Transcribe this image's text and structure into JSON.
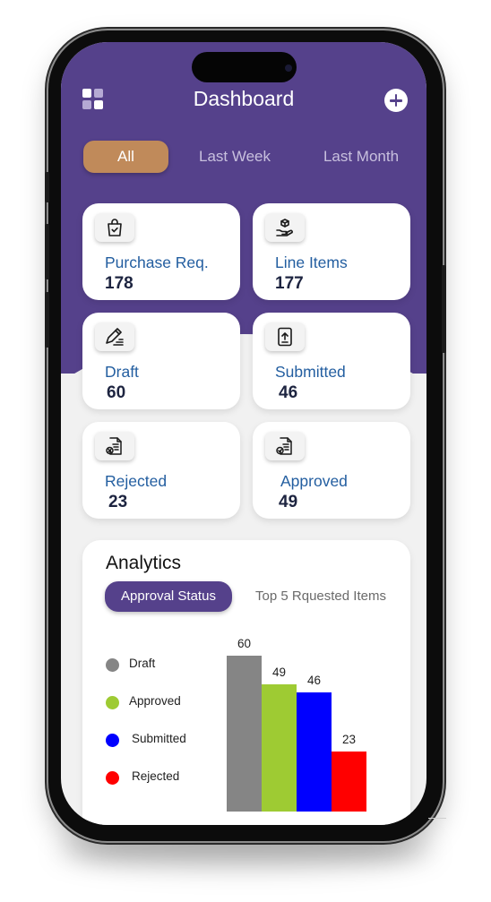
{
  "header": {
    "title": "Dashboard"
  },
  "filters": [
    {
      "label": "All",
      "active": true
    },
    {
      "label": "Last Week",
      "active": false
    },
    {
      "label": "Last Month",
      "active": false
    }
  ],
  "stats": [
    {
      "label": "Purchase Req.",
      "value": "178",
      "icon": "shopping-bag-check-icon"
    },
    {
      "label": "Line Items",
      "value": "177",
      "icon": "hand-box-icon"
    },
    {
      "label": "Draft",
      "value": "60",
      "icon": "pen-lines-icon"
    },
    {
      "label": "Submitted",
      "value": "46",
      "icon": "upload-document-icon"
    },
    {
      "label": "Rejected",
      "value": "23",
      "icon": "document-cross-icon"
    },
    {
      "label": "Approved",
      "value": "49",
      "icon": "document-check-icon"
    }
  ],
  "analytics": {
    "title": "Analytics",
    "tabs": [
      {
        "label": "Approval Status",
        "active": true
      },
      {
        "label": "Top 5 Rquested Items",
        "active": false
      }
    ]
  },
  "colors": {
    "brand_purple": "#55418b",
    "active_filter": "#c08a5a",
    "card_label": "#235ea0",
    "background": "#f1f1f1"
  },
  "chart_data": {
    "type": "bar",
    "title": "",
    "xlabel": "",
    "ylabel": "",
    "ylim": [
      0,
      60
    ],
    "grid": false,
    "legend_placement": "left",
    "categories": [
      "Draft",
      "Approved",
      "Submitted",
      "Rejected"
    ],
    "values": [
      60,
      49,
      46,
      23
    ],
    "colors": [
      "#858585",
      "#9ecb33",
      "#0000ff",
      "#ff0000"
    ],
    "data_labels": [
      "60",
      "49",
      "46",
      "23"
    ]
  }
}
